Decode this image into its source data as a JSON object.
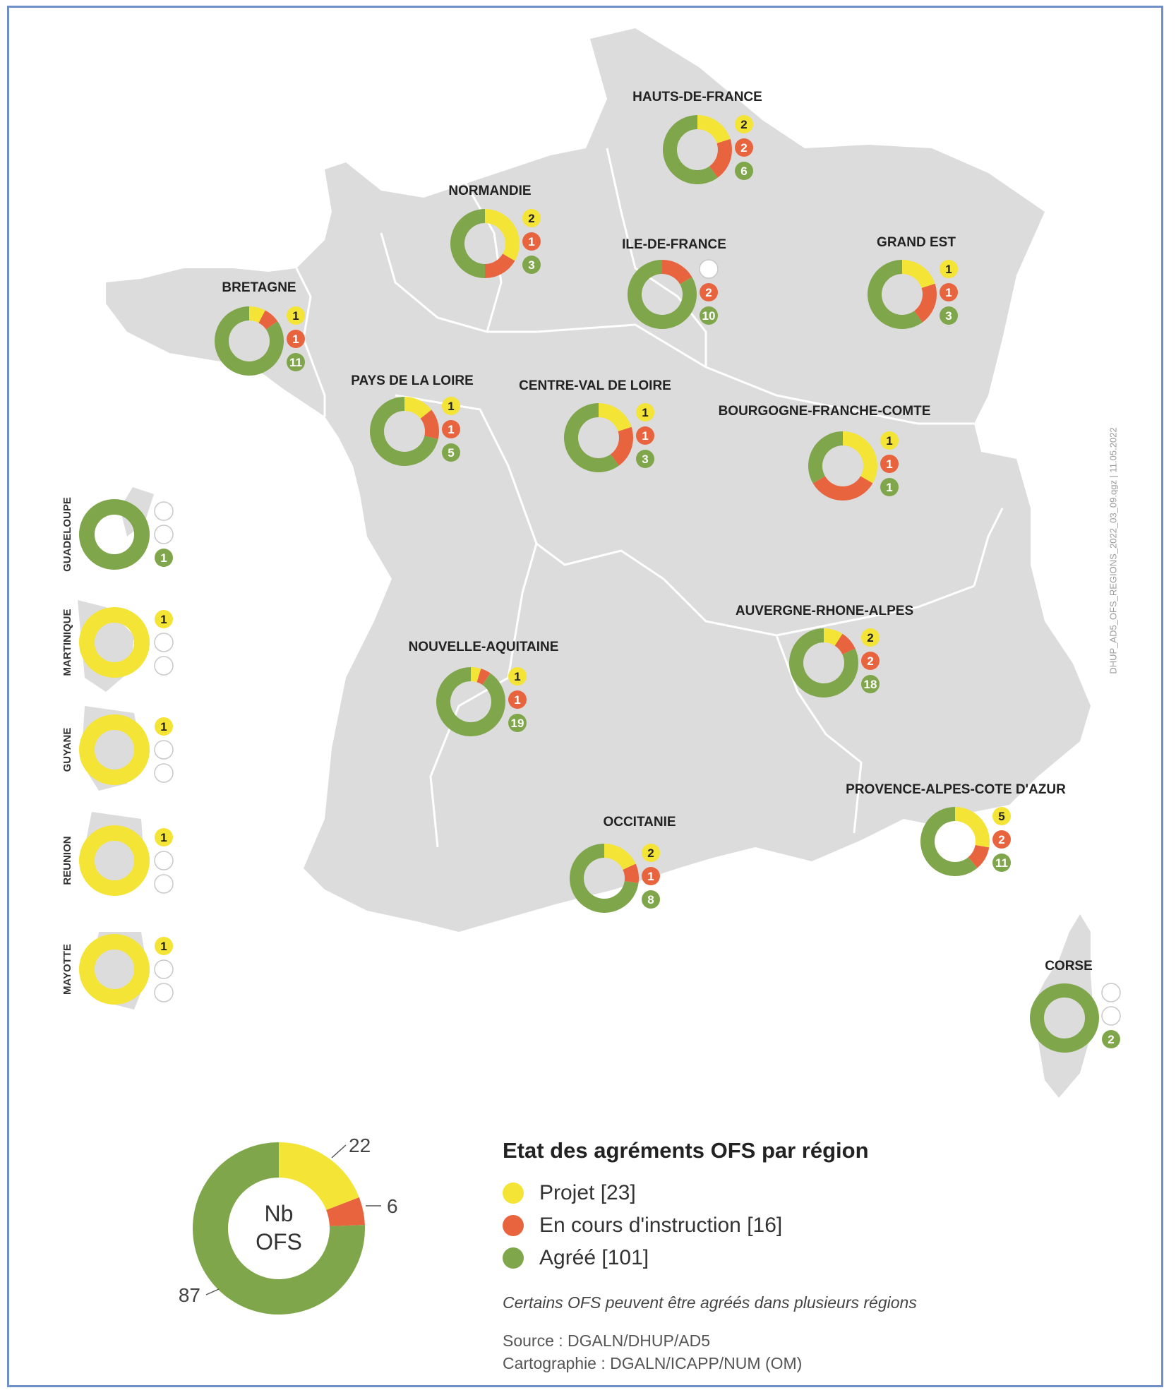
{
  "legend": {
    "title": "Etat des agréments OFS par région",
    "items": [
      {
        "label": "Projet [23]",
        "color": "#f4e435"
      },
      {
        "label": "En cours d'instruction [16]",
        "color": "#e8643f"
      },
      {
        "label": "Agréé [101]",
        "color": "#80a64b"
      }
    ],
    "note": "Certains OFS peuvent être agréés dans plusieurs régions",
    "source": "Source : DGALN/DHUP/AD5",
    "cartography": "Cartographie : DGALN/ICAPP/NUM (OM)"
  },
  "credit": "DHUP_AD5_OFS_REGIONS_2022_03_09.qgz | 11.05.2022",
  "colors": {
    "projet": "#f4e435",
    "instruction": "#e8643f",
    "agree": "#80a64b",
    "land": "#dcdcdc",
    "border": "#ffffff"
  },
  "summary": {
    "center_line1": "Nb",
    "center_line2": "OFS",
    "projet": 22,
    "instruction": 6,
    "agree": 87
  },
  "regions": [
    {
      "name": "HAUTS-DE-FRANCE",
      "projet": 2,
      "instruction": 2,
      "agree": 6
    },
    {
      "name": "NORMANDIE",
      "projet": 2,
      "instruction": 1,
      "agree": 3
    },
    {
      "name": "ILE-DE-FRANCE",
      "projet": 0,
      "instruction": 2,
      "agree": 10
    },
    {
      "name": "GRAND EST",
      "projet": 1,
      "instruction": 1,
      "agree": 3
    },
    {
      "name": "BRETAGNE",
      "projet": 1,
      "instruction": 1,
      "agree": 11
    },
    {
      "name": "PAYS DE LA LOIRE",
      "projet": 1,
      "instruction": 1,
      "agree": 5
    },
    {
      "name": "CENTRE-VAL DE LOIRE",
      "projet": 1,
      "instruction": 1,
      "agree": 3
    },
    {
      "name": "BOURGOGNE-FRANCHE-COMTE",
      "projet": 1,
      "instruction": 1,
      "agree": 1
    },
    {
      "name": "AUVERGNE-RHONE-ALPES",
      "projet": 2,
      "instruction": 2,
      "agree": 18
    },
    {
      "name": "NOUVELLE-AQUITAINE",
      "projet": 1,
      "instruction": 1,
      "agree": 19
    },
    {
      "name": "OCCITANIE",
      "projet": 2,
      "instruction": 1,
      "agree": 8
    },
    {
      "name": "PROVENCE-ALPES-COTE D'AZUR",
      "projet": 5,
      "instruction": 2,
      "agree": 11
    },
    {
      "name": "CORSE",
      "projet": 0,
      "instruction": 0,
      "agree": 2
    }
  ],
  "overseas": [
    {
      "name": "GUADELOUPE",
      "projet": 0,
      "instruction": 0,
      "agree": 1
    },
    {
      "name": "MARTINIQUE",
      "projet": 1,
      "instruction": 0,
      "agree": 0
    },
    {
      "name": "GUYANE",
      "projet": 1,
      "instruction": 0,
      "agree": 0
    },
    {
      "name": "REUNION",
      "projet": 1,
      "instruction": 0,
      "agree": 0
    },
    {
      "name": "MAYOTTE",
      "projet": 1,
      "instruction": 0,
      "agree": 0
    }
  ]
}
